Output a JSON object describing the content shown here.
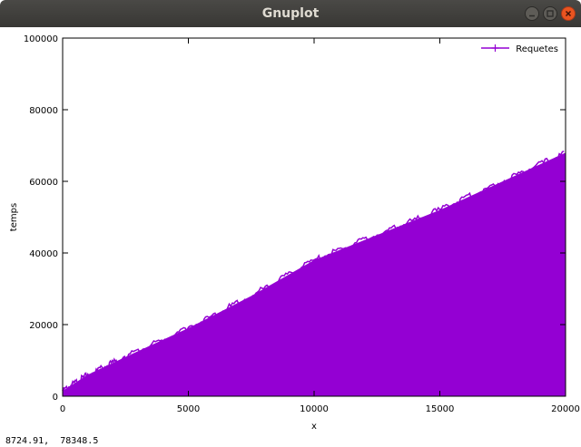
{
  "window": {
    "title": "Gnuplot",
    "status_text": "8724.91,  78348.5"
  },
  "colors": {
    "series": "#9400d3",
    "close_button": "#e95420"
  },
  "chart_data": {
    "type": "area",
    "xlabel": "x",
    "ylabel": "temps",
    "xlim": [
      0,
      20000
    ],
    "ylim": [
      0,
      100000
    ],
    "xticks": [
      0,
      5000,
      10000,
      15000,
      20000
    ],
    "yticks": [
      0,
      20000,
      40000,
      60000,
      80000,
      100000
    ],
    "grid": false,
    "legend": "top-right",
    "series": [
      {
        "name": "Requetes",
        "style": "linespoints",
        "upper_envelope": {
          "x": [
            0,
            1000,
            2500,
            5000,
            7500,
            10000,
            12500,
            15000,
            17500,
            20000
          ],
          "y": [
            1500,
            6000,
            11000,
            19000,
            28000,
            38000,
            45000,
            52000,
            60000,
            68000
          ]
        },
        "lower_envelope": {
          "x": [
            0,
            20000
          ],
          "y": [
            0,
            0
          ]
        }
      }
    ]
  }
}
